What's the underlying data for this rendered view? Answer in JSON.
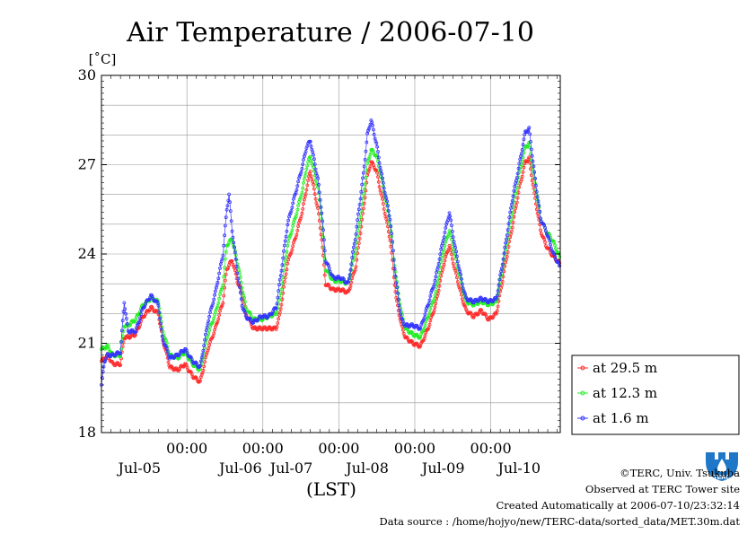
{
  "chart_data": {
    "type": "line",
    "title": "Air Temperature / 2006-07-10",
    "ylabel": "[˚C]",
    "xlabel": "(LST)",
    "ylim": [
      18,
      30
    ],
    "yticks": [
      18,
      21,
      24,
      27,
      30
    ],
    "xlim": [
      0,
      6.04
    ],
    "x_units": "days since 2006-07-04 21:00 LST",
    "xticks_time": [
      {
        "x": 1.125,
        "label": "00:00"
      },
      {
        "x": 2.125,
        "label": "00:00"
      },
      {
        "x": 3.125,
        "label": "00:00"
      },
      {
        "x": 4.125,
        "label": "00:00"
      },
      {
        "x": 5.125,
        "label": "00:00"
      }
    ],
    "xticks_date": [
      {
        "x": 0.5,
        "label": "Jul-05"
      },
      {
        "x": 1.83,
        "label": "Jul-06"
      },
      {
        "x": 2.5,
        "label": "Jul-07"
      },
      {
        "x": 3.5,
        "label": "Jul-08"
      },
      {
        "x": 4.5,
        "label": "Jul-09"
      },
      {
        "x": 5.5,
        "label": "Jul-10"
      }
    ],
    "grid": true,
    "legend_position": "right",
    "series": [
      {
        "name": "at 29.5 m",
        "color": "#ff2a2a",
        "points": [
          [
            0.0,
            20.4
          ],
          [
            0.08,
            20.6
          ],
          [
            0.15,
            20.3
          ],
          [
            0.25,
            20.3
          ],
          [
            0.3,
            21.2
          ],
          [
            0.35,
            21.2
          ],
          [
            0.45,
            21.3
          ],
          [
            0.55,
            21.9
          ],
          [
            0.65,
            22.2
          ],
          [
            0.75,
            22.0
          ],
          [
            0.8,
            21.2
          ],
          [
            0.9,
            20.2
          ],
          [
            1.0,
            20.1
          ],
          [
            1.1,
            20.3
          ],
          [
            1.2,
            19.9
          ],
          [
            1.3,
            19.7
          ],
          [
            1.4,
            20.8
          ],
          [
            1.5,
            21.5
          ],
          [
            1.6,
            22.4
          ],
          [
            1.65,
            23.5
          ],
          [
            1.72,
            23.8
          ],
          [
            1.8,
            23.0
          ],
          [
            1.85,
            22.7
          ],
          [
            1.9,
            22.0
          ],
          [
            2.0,
            21.5
          ],
          [
            2.1,
            21.5
          ],
          [
            2.2,
            21.5
          ],
          [
            2.3,
            21.5
          ],
          [
            2.35,
            22.0
          ],
          [
            2.45,
            23.7
          ],
          [
            2.55,
            24.5
          ],
          [
            2.65,
            25.5
          ],
          [
            2.7,
            26.2
          ],
          [
            2.75,
            26.8
          ],
          [
            2.85,
            25.5
          ],
          [
            2.9,
            24.5
          ],
          [
            2.95,
            23.0
          ],
          [
            3.05,
            22.8
          ],
          [
            3.15,
            22.8
          ],
          [
            3.25,
            22.7
          ],
          [
            3.35,
            23.6
          ],
          [
            3.45,
            25.5
          ],
          [
            3.5,
            26.6
          ],
          [
            3.55,
            27.1
          ],
          [
            3.62,
            26.8
          ],
          [
            3.7,
            25.8
          ],
          [
            3.8,
            24.5
          ],
          [
            3.88,
            22.5
          ],
          [
            3.95,
            21.6
          ],
          [
            4.0,
            21.2
          ],
          [
            4.1,
            21.0
          ],
          [
            4.2,
            20.9
          ],
          [
            4.3,
            21.5
          ],
          [
            4.4,
            22.3
          ],
          [
            4.5,
            23.6
          ],
          [
            4.58,
            24.3
          ],
          [
            4.65,
            23.5
          ],
          [
            4.75,
            22.5
          ],
          [
            4.8,
            22.1
          ],
          [
            4.9,
            21.9
          ],
          [
            5.0,
            22.1
          ],
          [
            5.1,
            21.8
          ],
          [
            5.2,
            22.0
          ],
          [
            5.3,
            23.4
          ],
          [
            5.4,
            24.8
          ],
          [
            5.5,
            26.2
          ],
          [
            5.58,
            27.1
          ],
          [
            5.63,
            27.2
          ],
          [
            5.7,
            26.0
          ],
          [
            5.78,
            24.8
          ],
          [
            5.85,
            24.3
          ],
          [
            5.95,
            23.9
          ],
          [
            6.03,
            23.7
          ]
        ]
      },
      {
        "name": "at 12.3 m",
        "color": "#22ee22",
        "points": [
          [
            0.0,
            20.8
          ],
          [
            0.08,
            20.9
          ],
          [
            0.15,
            20.6
          ],
          [
            0.25,
            20.6
          ],
          [
            0.3,
            21.6
          ],
          [
            0.35,
            21.6
          ],
          [
            0.45,
            21.8
          ],
          [
            0.55,
            22.3
          ],
          [
            0.65,
            22.5
          ],
          [
            0.75,
            22.4
          ],
          [
            0.8,
            21.5
          ],
          [
            0.9,
            20.6
          ],
          [
            1.0,
            20.5
          ],
          [
            1.1,
            20.7
          ],
          [
            1.2,
            20.3
          ],
          [
            1.3,
            20.1
          ],
          [
            1.4,
            21.3
          ],
          [
            1.5,
            22.0
          ],
          [
            1.6,
            23.0
          ],
          [
            1.65,
            24.3
          ],
          [
            1.72,
            24.5
          ],
          [
            1.8,
            23.6
          ],
          [
            1.85,
            22.9
          ],
          [
            1.9,
            22.2
          ],
          [
            2.0,
            21.8
          ],
          [
            2.1,
            21.8
          ],
          [
            2.2,
            21.9
          ],
          [
            2.3,
            22.0
          ],
          [
            2.35,
            22.5
          ],
          [
            2.45,
            24.3
          ],
          [
            2.55,
            25.2
          ],
          [
            2.65,
            26.2
          ],
          [
            2.7,
            26.9
          ],
          [
            2.75,
            27.3
          ],
          [
            2.85,
            26.2
          ],
          [
            2.9,
            25.2
          ],
          [
            2.95,
            23.5
          ],
          [
            3.05,
            23.1
          ],
          [
            3.15,
            23.1
          ],
          [
            3.25,
            23.0
          ],
          [
            3.35,
            24.2
          ],
          [
            3.45,
            26.0
          ],
          [
            3.5,
            27.0
          ],
          [
            3.55,
            27.5
          ],
          [
            3.62,
            27.3
          ],
          [
            3.7,
            26.4
          ],
          [
            3.8,
            25.0
          ],
          [
            3.88,
            23.2
          ],
          [
            3.95,
            22.0
          ],
          [
            4.0,
            21.5
          ],
          [
            4.1,
            21.3
          ],
          [
            4.2,
            21.2
          ],
          [
            4.3,
            21.9
          ],
          [
            4.4,
            22.7
          ],
          [
            4.5,
            24.1
          ],
          [
            4.58,
            24.8
          ],
          [
            4.65,
            24.0
          ],
          [
            4.75,
            22.9
          ],
          [
            4.8,
            22.4
          ],
          [
            4.9,
            22.3
          ],
          [
            5.0,
            22.4
          ],
          [
            5.1,
            22.3
          ],
          [
            5.2,
            22.4
          ],
          [
            5.3,
            23.8
          ],
          [
            5.4,
            25.3
          ],
          [
            5.5,
            26.7
          ],
          [
            5.58,
            27.6
          ],
          [
            5.63,
            27.7
          ],
          [
            5.7,
            26.5
          ],
          [
            5.78,
            25.2
          ],
          [
            5.85,
            24.8
          ],
          [
            5.95,
            24.4
          ],
          [
            6.03,
            23.9
          ]
        ]
      },
      {
        "name": "at 1.6 m",
        "color": "#3333ff",
        "points": [
          [
            0.0,
            19.6
          ],
          [
            0.04,
            20.4
          ],
          [
            0.08,
            20.6
          ],
          [
            0.15,
            20.6
          ],
          [
            0.25,
            20.7
          ],
          [
            0.3,
            22.4
          ],
          [
            0.35,
            21.4
          ],
          [
            0.45,
            21.4
          ],
          [
            0.55,
            22.2
          ],
          [
            0.65,
            22.6
          ],
          [
            0.75,
            22.3
          ],
          [
            0.8,
            21.2
          ],
          [
            0.9,
            20.5
          ],
          [
            1.0,
            20.6
          ],
          [
            1.1,
            20.8
          ],
          [
            1.2,
            20.4
          ],
          [
            1.3,
            20.2
          ],
          [
            1.4,
            21.7
          ],
          [
            1.5,
            22.7
          ],
          [
            1.6,
            24.0
          ],
          [
            1.65,
            25.5
          ],
          [
            1.68,
            26.0
          ],
          [
            1.72,
            24.8
          ],
          [
            1.8,
            23.2
          ],
          [
            1.85,
            22.3
          ],
          [
            1.9,
            21.9
          ],
          [
            2.0,
            21.7
          ],
          [
            2.1,
            21.9
          ],
          [
            2.2,
            21.9
          ],
          [
            2.3,
            22.2
          ],
          [
            2.35,
            23.1
          ],
          [
            2.45,
            25.0
          ],
          [
            2.55,
            26.0
          ],
          [
            2.65,
            27.0
          ],
          [
            2.7,
            27.6
          ],
          [
            2.75,
            27.8
          ],
          [
            2.85,
            26.5
          ],
          [
            2.9,
            25.4
          ],
          [
            2.95,
            23.8
          ],
          [
            3.05,
            23.2
          ],
          [
            3.15,
            23.2
          ],
          [
            3.25,
            23.0
          ],
          [
            3.35,
            24.7
          ],
          [
            3.45,
            26.7
          ],
          [
            3.5,
            28.0
          ],
          [
            3.55,
            28.5
          ],
          [
            3.62,
            27.7
          ],
          [
            3.7,
            26.5
          ],
          [
            3.8,
            25.2
          ],
          [
            3.88,
            23.0
          ],
          [
            3.95,
            21.8
          ],
          [
            4.0,
            21.6
          ],
          [
            4.1,
            21.6
          ],
          [
            4.2,
            21.5
          ],
          [
            4.3,
            22.3
          ],
          [
            4.4,
            23.2
          ],
          [
            4.5,
            24.5
          ],
          [
            4.58,
            25.4
          ],
          [
            4.65,
            24.3
          ],
          [
            4.75,
            23.0
          ],
          [
            4.8,
            22.5
          ],
          [
            4.9,
            22.4
          ],
          [
            5.0,
            22.5
          ],
          [
            5.1,
            22.4
          ],
          [
            5.2,
            22.5
          ],
          [
            5.3,
            24.0
          ],
          [
            5.4,
            25.7
          ],
          [
            5.5,
            27.0
          ],
          [
            5.58,
            28.1
          ],
          [
            5.63,
            28.2
          ],
          [
            5.7,
            26.7
          ],
          [
            5.78,
            25.2
          ],
          [
            5.85,
            24.8
          ],
          [
            5.95,
            24.0
          ],
          [
            6.03,
            23.6
          ]
        ]
      }
    ]
  },
  "footer": {
    "copyright": "©TERC, Univ. Tsukuba",
    "site": "Observed at TERC Tower site",
    "created": "Created Automatically at 2006-07-10/23:32:14",
    "source": "Data source : /home/hojyo/new/TERC-data/sorted_data/MET.30m.dat"
  },
  "logo": {
    "text": "TERC",
    "color": "#1f77c8"
  }
}
